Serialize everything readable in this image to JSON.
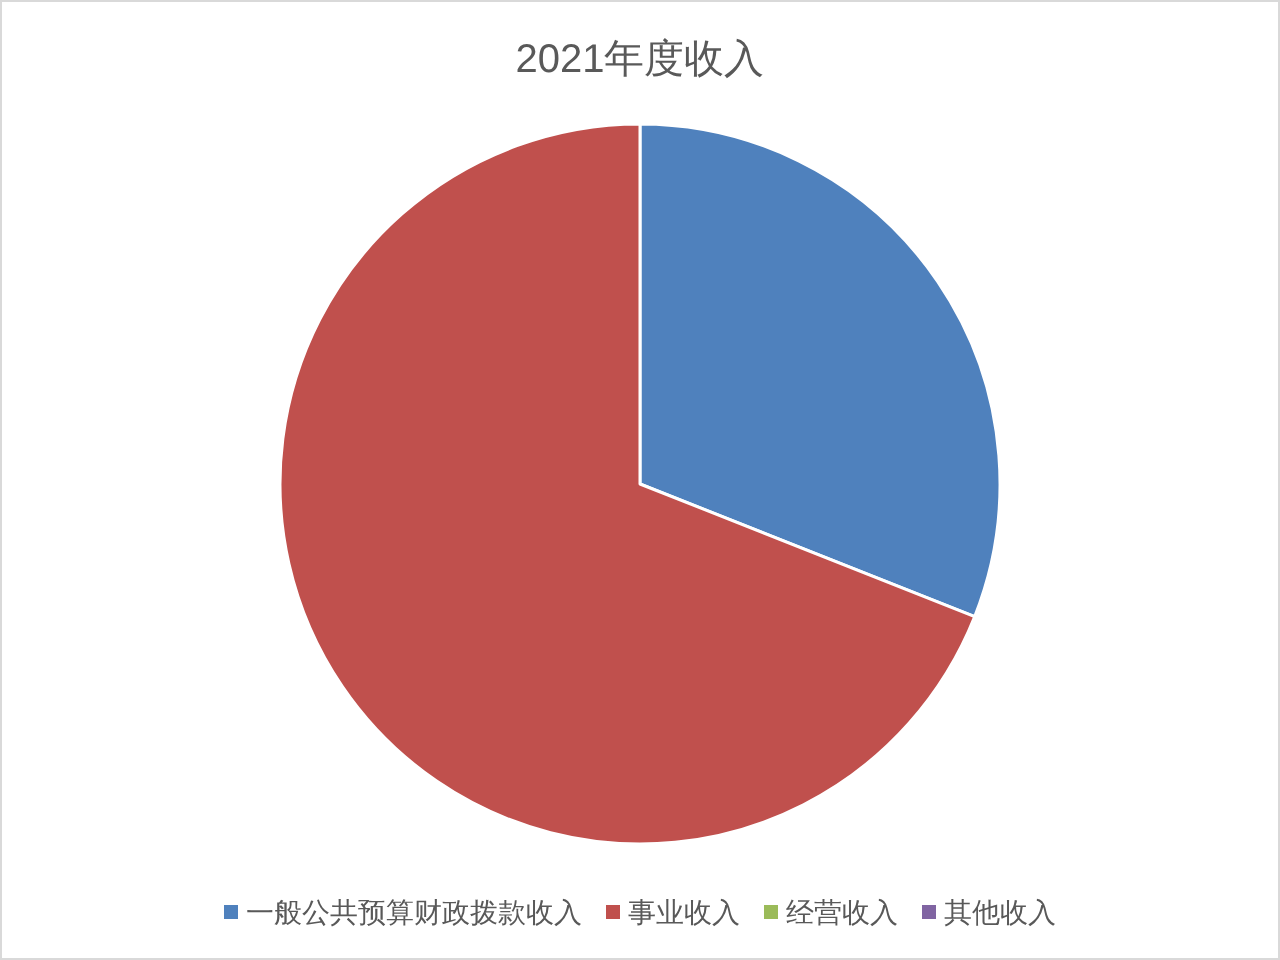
{
  "chart_data": {
    "type": "pie",
    "title": "2021年度收入",
    "categories": [
      "一般公共预算财政拨款收入",
      "事业收入",
      "经营收入",
      "其他收入"
    ],
    "values": [
      31,
      69,
      0,
      0
    ],
    "colors": [
      "#4f81bd",
      "#c0504d",
      "#9bbb59",
      "#8064a2"
    ],
    "legend": "bottom"
  }
}
